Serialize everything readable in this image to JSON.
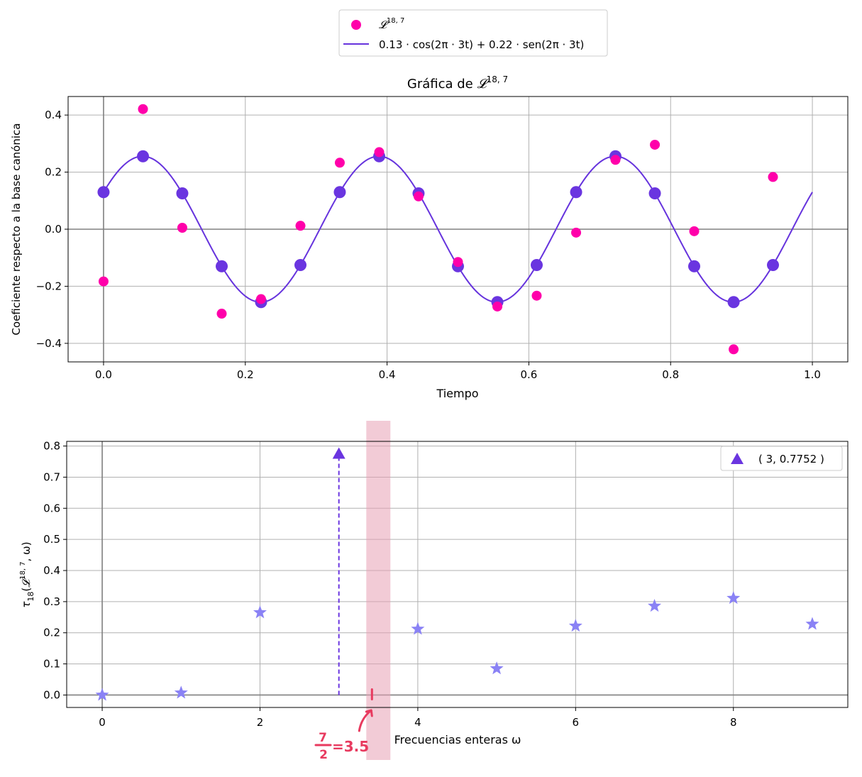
{
  "chart_data": [
    {
      "type": "scatter",
      "title_prefix": "Gráfica de ",
      "title_symbol": "𝓛",
      "title_sup": "18, 7",
      "xlabel": "Tiempo",
      "ylabel": "Coeficiente respecto a la base canónica",
      "xlim": [
        -0.05,
        1.05
      ],
      "ylim": [
        -0.465,
        0.465
      ],
      "xticks": [
        0.0,
        0.2,
        0.4,
        0.6,
        0.8,
        1.0
      ],
      "xtick_labels": [
        "0.0",
        "0.2",
        "0.4",
        "0.6",
        "0.8",
        "1.0"
      ],
      "yticks": [
        -0.4,
        -0.2,
        0.0,
        0.2,
        0.4
      ],
      "ytick_labels": [
        "−0.4",
        "−0.2",
        "0.0",
        "0.2",
        "0.4"
      ],
      "grid": true,
      "legend": {
        "placement": "above",
        "entries": [
          {
            "symbol": "𝓛",
            "sup": "18, 7",
            "color": "#ff00aa",
            "marker": "circle"
          },
          {
            "label": "0.13 · cos(2π · 3t) + 0.22 · sen(2π · 3t)",
            "color": "#6633dd",
            "marker": "line"
          }
        ]
      },
      "series": [
        {
          "name": "𝓛^{18, 7}",
          "kind": "scatter",
          "color": "#ff00aa",
          "x": [
            0.0,
            0.0556,
            0.1111,
            0.1667,
            0.2222,
            0.2778,
            0.3333,
            0.3889,
            0.4444,
            0.5,
            0.5556,
            0.6111,
            0.6667,
            0.7222,
            0.7778,
            0.8333,
            0.8889,
            0.9444
          ],
          "y": [
            -0.183,
            0.421,
            0.005,
            -0.296,
            -0.245,
            0.012,
            0.233,
            0.27,
            0.115,
            -0.115,
            -0.271,
            -0.233,
            -0.012,
            0.243,
            0.296,
            -0.007,
            -0.421,
            0.183
          ]
        },
        {
          "name": "samples",
          "kind": "scatter",
          "color": "#6a35e0",
          "x": [
            0.0,
            0.0556,
            0.1111,
            0.1667,
            0.2222,
            0.2778,
            0.3333,
            0.3889,
            0.4444,
            0.5,
            0.5556,
            0.6111,
            0.6667,
            0.7222,
            0.7778,
            0.8333,
            0.8889,
            0.9444
          ],
          "y": [
            0.13,
            0.2555,
            0.1255,
            -0.13,
            -0.2555,
            -0.1255,
            0.13,
            0.2555,
            0.1255,
            -0.13,
            -0.2555,
            -0.1255,
            0.13,
            0.2555,
            0.1255,
            -0.13,
            -0.2555,
            -0.1255
          ]
        },
        {
          "name": "0.13 · cos(2π · 3t) + 0.22 · sen(2π · 3t)",
          "kind": "function",
          "color": "#6633dd",
          "a": 0.13,
          "b": 0.22,
          "freq": 3,
          "domain": [
            0.0,
            1.0
          ]
        }
      ]
    },
    {
      "type": "scatter",
      "xlabel": "Frecuencias enteras ω",
      "ylabel_prefix": "τ",
      "ylabel_sub": "18",
      "ylabel_open": "(",
      "ylabel_symbol": "𝓛",
      "ylabel_sup": "18, 7",
      "ylabel_suffix": ", ω)",
      "xlim": [
        -0.45,
        9.45
      ],
      "ylim": [
        -0.04,
        0.815
      ],
      "xticks": [
        0,
        2,
        4,
        6,
        8
      ],
      "xtick_labels": [
        "0",
        "2",
        "4",
        "6",
        "8"
      ],
      "yticks": [
        0.0,
        0.1,
        0.2,
        0.3,
        0.4,
        0.5,
        0.6,
        0.7,
        0.8
      ],
      "ytick_labels": [
        "0.0",
        "0.1",
        "0.2",
        "0.3",
        "0.4",
        "0.5",
        "0.6",
        "0.7",
        "0.8"
      ],
      "grid": true,
      "legend": {
        "placement": "top-right",
        "entries": [
          {
            "label": "( 3, 0.7752 )",
            "color": "#6a35e0",
            "marker": "triangle"
          }
        ]
      },
      "series": [
        {
          "name": "stars",
          "kind": "scatter",
          "marker": "star",
          "color": "#8a82f5",
          "x": [
            0,
            1,
            2,
            4,
            5,
            6,
            7,
            8,
            9
          ],
          "y": [
            0.0,
            0.007,
            0.265,
            0.212,
            0.085,
            0.222,
            0.286,
            0.311,
            0.228
          ]
        },
        {
          "name": "( 3, 0.7752 )",
          "kind": "scatter",
          "marker": "triangle",
          "color": "#6a35e0",
          "x": [
            3
          ],
          "y": [
            0.7752
          ]
        }
      ],
      "annotations": {
        "highlight_x": 3.5,
        "highlight_color": "#e8a0b4",
        "note_num": "7",
        "note_den": "2",
        "note_eq": "=3.5",
        "note_color": "#e83a5f"
      }
    }
  ]
}
